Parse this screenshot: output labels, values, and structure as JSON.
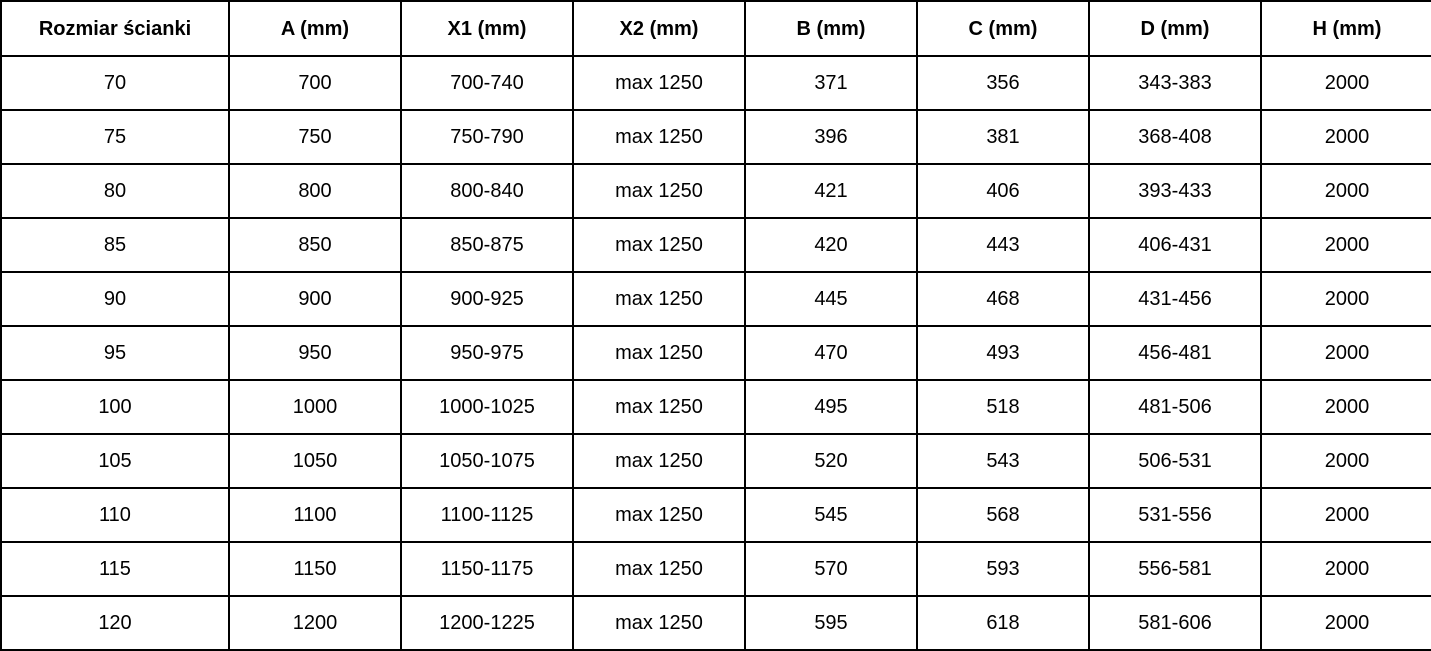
{
  "table": {
    "headers": [
      "Rozmiar ścianki",
      "A (mm)",
      "X1 (mm)",
      "X2 (mm)",
      "B (mm)",
      "C (mm)",
      "D (mm)",
      "H (mm)"
    ],
    "rows": [
      [
        "70",
        "700",
        "700-740",
        "max 1250",
        "371",
        "356",
        "343-383",
        "2000"
      ],
      [
        "75",
        "750",
        "750-790",
        "max 1250",
        "396",
        "381",
        "368-408",
        "2000"
      ],
      [
        "80",
        "800",
        "800-840",
        "max 1250",
        "421",
        "406",
        "393-433",
        "2000"
      ],
      [
        "85",
        "850",
        "850-875",
        "max 1250",
        "420",
        "443",
        "406-431",
        "2000"
      ],
      [
        "90",
        "900",
        "900-925",
        "max 1250",
        "445",
        "468",
        "431-456",
        "2000"
      ],
      [
        "95",
        "950",
        "950-975",
        "max 1250",
        "470",
        "493",
        "456-481",
        "2000"
      ],
      [
        "100",
        "1000",
        "1000-1025",
        "max 1250",
        "495",
        "518",
        "481-506",
        "2000"
      ],
      [
        "105",
        "1050",
        "1050-1075",
        "max 1250",
        "520",
        "543",
        "506-531",
        "2000"
      ],
      [
        "110",
        "1100",
        "1100-1125",
        "max 1250",
        "545",
        "568",
        "531-556",
        "2000"
      ],
      [
        "115",
        "1150",
        "1150-1175",
        "max 1250",
        "570",
        "593",
        "556-581",
        "2000"
      ],
      [
        "120",
        "1200",
        "1200-1225",
        "max 1250",
        "595",
        "618",
        "581-606",
        "2000"
      ]
    ],
    "colors": {
      "border": "#000000",
      "background": "#ffffff",
      "text": "#000000"
    }
  },
  "chart_data": {
    "type": "table",
    "title": "",
    "columns": [
      "Rozmiar ścianki",
      "A (mm)",
      "X1 (mm)",
      "X2 (mm)",
      "B (mm)",
      "C (mm)",
      "D (mm)",
      "H (mm)"
    ],
    "rows": [
      [
        "70",
        "700",
        "700-740",
        "max 1250",
        "371",
        "356",
        "343-383",
        "2000"
      ],
      [
        "75",
        "750",
        "750-790",
        "max 1250",
        "396",
        "381",
        "368-408",
        "2000"
      ],
      [
        "80",
        "800",
        "800-840",
        "max 1250",
        "421",
        "406",
        "393-433",
        "2000"
      ],
      [
        "85",
        "850",
        "850-875",
        "max 1250",
        "420",
        "443",
        "406-431",
        "2000"
      ],
      [
        "90",
        "900",
        "900-925",
        "max 1250",
        "445",
        "468",
        "431-456",
        "2000"
      ],
      [
        "95",
        "950",
        "950-975",
        "max 1250",
        "470",
        "493",
        "456-481",
        "2000"
      ],
      [
        "100",
        "1000",
        "1000-1025",
        "max 1250",
        "495",
        "518",
        "481-506",
        "2000"
      ],
      [
        "105",
        "1050",
        "1050-1075",
        "max 1250",
        "520",
        "543",
        "506-531",
        "2000"
      ],
      [
        "110",
        "1100",
        "1100-1125",
        "max 1250",
        "545",
        "568",
        "531-556",
        "2000"
      ],
      [
        "115",
        "1150",
        "1150-1175",
        "max 1250",
        "570",
        "593",
        "556-581",
        "2000"
      ],
      [
        "120",
        "1200",
        "1200-1225",
        "max 1250",
        "595",
        "618",
        "581-606",
        "2000"
      ]
    ],
    "layout_hints": {
      "header_bold": true,
      "all_cells_centered": true,
      "grid": "full black borders"
    }
  }
}
